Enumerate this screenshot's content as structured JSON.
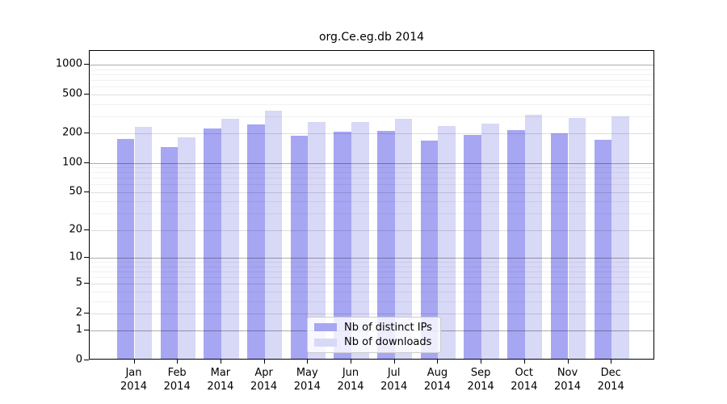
{
  "chart_data": {
    "type": "bar",
    "title": "org.Ce.eg.db 2014",
    "yscale": "log1p",
    "ylim": [
      0,
      1380
    ],
    "grid": true,
    "legend_position": "bottom-center",
    "categories": [
      "Jan",
      "Feb",
      "Mar",
      "Apr",
      "May",
      "Jun",
      "Jul",
      "Aug",
      "Sep",
      "Oct",
      "Nov",
      "Dec"
    ],
    "category_year": "2014",
    "series": [
      {
        "name": "Nb of distinct IPs",
        "color": "#a6a6f2",
        "values": [
          170,
          140,
          215,
          237,
          182,
          199,
          206,
          162,
          187,
          208,
          193,
          167
        ]
      },
      {
        "name": "Nb of downloads",
        "color": "#d8d8f7",
        "values": [
          223,
          176,
          272,
          328,
          253,
          253,
          272,
          229,
          241,
          296,
          276,
          285
        ]
      }
    ],
    "yticks": [
      0,
      1,
      2,
      5,
      10,
      20,
      50,
      100,
      200,
      500,
      1000
    ],
    "ytick_labels": [
      "0",
      "1",
      "2",
      "5",
      "10",
      "20",
      "50",
      "100",
      "200",
      "500",
      "1000"
    ],
    "emphasized_gridlines": [
      1,
      10,
      100,
      1000
    ],
    "minor_gridlines": [
      3,
      4,
      6,
      7,
      8,
      9,
      30,
      40,
      60,
      70,
      80,
      90,
      300,
      400,
      600,
      700,
      800,
      900
    ]
  }
}
